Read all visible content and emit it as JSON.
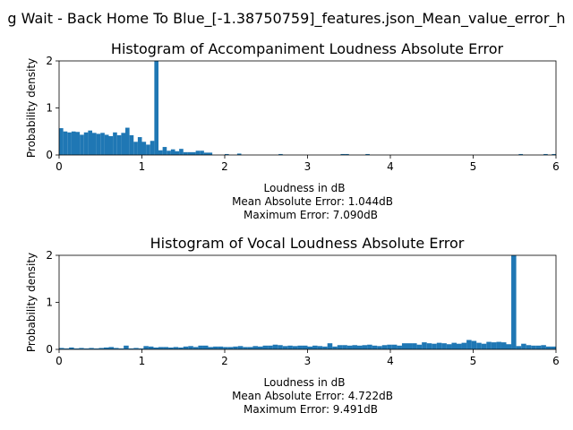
{
  "figure": {
    "suptitle": "g Wait - Back Home To Blue_[-1.38750759]_features.json_Mean_value_error_h"
  },
  "chart_data": [
    {
      "type": "bar",
      "title": "Histogram of Accompaniment Loudness Absolute Error",
      "xlabel": "Loudness in dB",
      "ylabel": "Probability density",
      "xlim": [
        0,
        6
      ],
      "ylim": [
        0,
        2
      ],
      "xticks": [
        "0",
        "1",
        "2",
        "3",
        "4",
        "5",
        "6"
      ],
      "yticks": [
        "0",
        "1",
        "2"
      ],
      "bin_width": 0.05,
      "annotations": [
        "Mean Absolute Error: 1.044dB",
        "Maximum Error: 7.090dB"
      ],
      "bar_color": "#1f77b4",
      "bins": [
        [
          0.0,
          0.57
        ],
        [
          0.05,
          0.5
        ],
        [
          0.1,
          0.48
        ],
        [
          0.15,
          0.5
        ],
        [
          0.2,
          0.49
        ],
        [
          0.25,
          0.43
        ],
        [
          0.3,
          0.48
        ],
        [
          0.35,
          0.52
        ],
        [
          0.4,
          0.47
        ],
        [
          0.45,
          0.45
        ],
        [
          0.5,
          0.47
        ],
        [
          0.55,
          0.43
        ],
        [
          0.6,
          0.4
        ],
        [
          0.65,
          0.48
        ],
        [
          0.7,
          0.42
        ],
        [
          0.75,
          0.47
        ],
        [
          0.8,
          0.58
        ],
        [
          0.85,
          0.42
        ],
        [
          0.9,
          0.28
        ],
        [
          0.95,
          0.38
        ],
        [
          1.0,
          0.28
        ],
        [
          1.05,
          0.22
        ],
        [
          1.1,
          0.3
        ],
        [
          1.15,
          2.0
        ],
        [
          1.2,
          0.1
        ],
        [
          1.25,
          0.17
        ],
        [
          1.3,
          0.09
        ],
        [
          1.35,
          0.12
        ],
        [
          1.4,
          0.08
        ],
        [
          1.45,
          0.13
        ],
        [
          1.5,
          0.06
        ],
        [
          1.55,
          0.06
        ],
        [
          1.6,
          0.06
        ],
        [
          1.65,
          0.09
        ],
        [
          1.7,
          0.09
        ],
        [
          1.75,
          0.05
        ],
        [
          1.8,
          0.05
        ],
        [
          2.0,
          0.02
        ],
        [
          2.15,
          0.03
        ],
        [
          2.65,
          0.02
        ],
        [
          3.4,
          0.02
        ],
        [
          3.45,
          0.02
        ],
        [
          3.7,
          0.02
        ],
        [
          5.55,
          0.02
        ],
        [
          5.85,
          0.02
        ],
        [
          5.95,
          0.02
        ]
      ]
    },
    {
      "type": "bar",
      "title": "Histogram of Vocal Loudness Absolute Error",
      "xlabel": "Loudness in dB",
      "ylabel": "Probability density",
      "xlim": [
        0,
        6
      ],
      "ylim": [
        0,
        2
      ],
      "xticks": [
        "0",
        "1",
        "2",
        "3",
        "4",
        "5",
        "6"
      ],
      "yticks": [
        "0",
        "1",
        "2"
      ],
      "bin_width": 0.06,
      "annotations": [
        "Mean Absolute Error: 4.722dB",
        "Maximum Error: 9.491dB"
      ],
      "bar_color": "#1f77b4",
      "bins": [
        [
          0.0,
          0.03
        ],
        [
          0.06,
          0.02
        ],
        [
          0.12,
          0.04
        ],
        [
          0.18,
          0.02
        ],
        [
          0.24,
          0.03
        ],
        [
          0.3,
          0.02
        ],
        [
          0.36,
          0.03
        ],
        [
          0.42,
          0.02
        ],
        [
          0.48,
          0.03
        ],
        [
          0.54,
          0.04
        ],
        [
          0.6,
          0.05
        ],
        [
          0.66,
          0.03
        ],
        [
          0.72,
          0.02
        ],
        [
          0.78,
          0.08
        ],
        [
          0.84,
          0.02
        ],
        [
          0.9,
          0.03
        ],
        [
          0.96,
          0.02
        ],
        [
          1.02,
          0.07
        ],
        [
          1.08,
          0.06
        ],
        [
          1.14,
          0.04
        ],
        [
          1.2,
          0.05
        ],
        [
          1.26,
          0.05
        ],
        [
          1.32,
          0.04
        ],
        [
          1.38,
          0.05
        ],
        [
          1.44,
          0.04
        ],
        [
          1.5,
          0.06
        ],
        [
          1.56,
          0.07
        ],
        [
          1.62,
          0.05
        ],
        [
          1.68,
          0.08
        ],
        [
          1.74,
          0.08
        ],
        [
          1.8,
          0.05
        ],
        [
          1.86,
          0.06
        ],
        [
          1.92,
          0.06
        ],
        [
          1.98,
          0.05
        ],
        [
          2.04,
          0.05
        ],
        [
          2.1,
          0.06
        ],
        [
          2.16,
          0.07
        ],
        [
          2.22,
          0.05
        ],
        [
          2.28,
          0.05
        ],
        [
          2.34,
          0.07
        ],
        [
          2.4,
          0.06
        ],
        [
          2.46,
          0.08
        ],
        [
          2.52,
          0.08
        ],
        [
          2.58,
          0.1
        ],
        [
          2.64,
          0.09
        ],
        [
          2.7,
          0.07
        ],
        [
          2.76,
          0.08
        ],
        [
          2.82,
          0.07
        ],
        [
          2.88,
          0.08
        ],
        [
          2.94,
          0.08
        ],
        [
          3.0,
          0.06
        ],
        [
          3.06,
          0.08
        ],
        [
          3.12,
          0.07
        ],
        [
          3.18,
          0.06
        ],
        [
          3.24,
          0.13
        ],
        [
          3.3,
          0.06
        ],
        [
          3.36,
          0.09
        ],
        [
          3.42,
          0.09
        ],
        [
          3.48,
          0.08
        ],
        [
          3.54,
          0.09
        ],
        [
          3.6,
          0.08
        ],
        [
          3.66,
          0.09
        ],
        [
          3.72,
          0.1
        ],
        [
          3.78,
          0.08
        ],
        [
          3.84,
          0.07
        ],
        [
          3.9,
          0.09
        ],
        [
          3.96,
          0.1
        ],
        [
          4.02,
          0.1
        ],
        [
          4.08,
          0.08
        ],
        [
          4.14,
          0.13
        ],
        [
          4.2,
          0.13
        ],
        [
          4.26,
          0.13
        ],
        [
          4.32,
          0.1
        ],
        [
          4.38,
          0.15
        ],
        [
          4.44,
          0.13
        ],
        [
          4.5,
          0.12
        ],
        [
          4.56,
          0.14
        ],
        [
          4.62,
          0.13
        ],
        [
          4.68,
          0.11
        ],
        [
          4.74,
          0.14
        ],
        [
          4.8,
          0.12
        ],
        [
          4.86,
          0.14
        ],
        [
          4.92,
          0.2
        ],
        [
          4.98,
          0.18
        ],
        [
          5.04,
          0.14
        ],
        [
          5.1,
          0.12
        ],
        [
          5.16,
          0.16
        ],
        [
          5.22,
          0.15
        ],
        [
          5.28,
          0.16
        ],
        [
          5.34,
          0.15
        ],
        [
          5.4,
          0.11
        ],
        [
          5.46,
          2.0
        ],
        [
          5.52,
          0.07
        ],
        [
          5.58,
          0.12
        ],
        [
          5.64,
          0.09
        ],
        [
          5.7,
          0.08
        ],
        [
          5.76,
          0.08
        ],
        [
          5.82,
          0.09
        ],
        [
          5.88,
          0.06
        ],
        [
          5.94,
          0.06
        ]
      ]
    }
  ]
}
